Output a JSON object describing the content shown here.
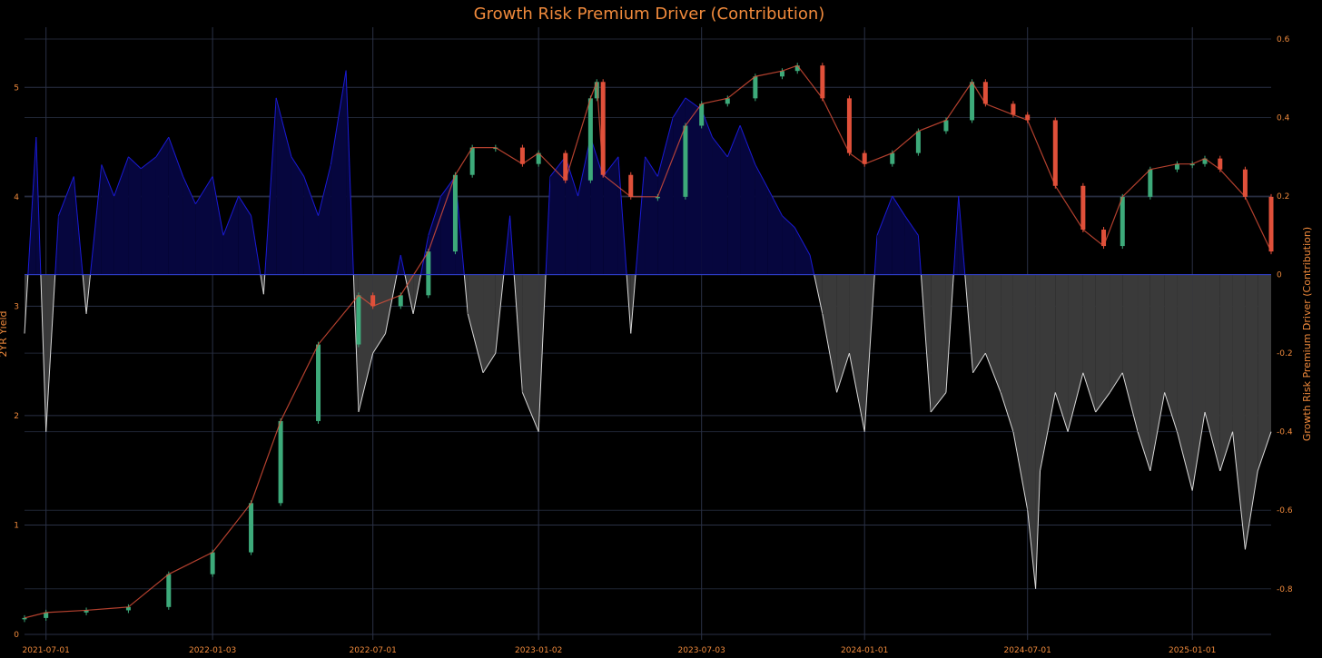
{
  "chart_data": {
    "type": "line",
    "title": "Growth Risk Premium Driver (Contribution)",
    "ylabel_left": "2YR Yield",
    "ylabel_right": "Growth Risk Premium Driver (Contribution)",
    "x_ticks": [
      "2021-07-01",
      "2022-01-03",
      "2022-07-01",
      "2023-01-02",
      "2023-07-03",
      "2024-01-01",
      "2024-07-01",
      "2025-01-01"
    ],
    "y_left_ticks": [
      "0",
      "1",
      "2",
      "3",
      "4",
      "5"
    ],
    "y_right_ticks": [
      "0.6",
      "0.4",
      "0.2",
      "0",
      "-0.2",
      "-0.4",
      "-0.6",
      "-0.8"
    ],
    "xlim": [
      "2021-06-07",
      "2025-03-30"
    ],
    "ylim_left": [
      -0.05,
      5.55
    ],
    "ylim_right": [
      -0.93,
      0.63
    ],
    "grid": true,
    "colors": {
      "background": "#000000",
      "title": "#f08a3c",
      "ticks": "#f08a3c",
      "grid": "#2a3146",
      "candle_up": "#3daa7a",
      "candle_down": "#e0503a",
      "positive_contribution": "#1a1ad6",
      "positive_fill": "#06063e",
      "negative_contribution": "#d8d8d8",
      "negative_fill": "#3a3a3a",
      "zero_line": "#3344dd"
    },
    "series": [
      {
        "name": "2YR Yield",
        "axis": "left",
        "style": "candlestick",
        "x": [
          "2021-06-07",
          "2021-07-01",
          "2021-08-15",
          "2021-10-01",
          "2021-11-15",
          "2022-01-03",
          "2022-02-15",
          "2022-03-20",
          "2022-05-01",
          "2022-06-15",
          "2022-07-01",
          "2022-08-01",
          "2022-09-01",
          "2022-10-01",
          "2022-10-20",
          "2022-11-15",
          "2022-12-15",
          "2023-01-02",
          "2023-02-01",
          "2023-03-01",
          "2023-03-08",
          "2023-03-15",
          "2023-04-15",
          "2023-05-15",
          "2023-06-15",
          "2023-07-03",
          "2023-08-01",
          "2023-09-01",
          "2023-10-01",
          "2023-10-18",
          "2023-11-15",
          "2023-12-15",
          "2024-01-01",
          "2024-02-01",
          "2024-03-01",
          "2024-04-01",
          "2024-04-30",
          "2024-05-15",
          "2024-06-15",
          "2024-07-01",
          "2024-08-01",
          "2024-09-01",
          "2024-09-24",
          "2024-10-15",
          "2024-11-15",
          "2024-12-15",
          "2025-01-01",
          "2025-01-15",
          "2025-02-01",
          "2025-03-01",
          "2025-03-30"
        ],
        "y": [
          0.15,
          0.2,
          0.22,
          0.25,
          0.55,
          0.75,
          1.2,
          1.95,
          2.65,
          3.1,
          3.0,
          3.1,
          3.5,
          4.2,
          4.45,
          4.45,
          4.3,
          4.4,
          4.15,
          4.9,
          5.05,
          4.2,
          4.0,
          4.0,
          4.65,
          4.85,
          4.9,
          5.1,
          5.15,
          5.2,
          4.9,
          4.4,
          4.3,
          4.4,
          4.6,
          4.7,
          5.05,
          4.85,
          4.75,
          4.7,
          4.1,
          3.7,
          3.55,
          4.0,
          4.25,
          4.3,
          4.3,
          4.35,
          4.25,
          4.0,
          3.5
        ]
      },
      {
        "name": "Growth Risk Premium Driver (Contribution)",
        "axis": "right",
        "style": "area",
        "x": [
          "2021-06-07",
          "2021-06-20",
          "2021-07-01",
          "2021-07-15",
          "2021-08-01",
          "2021-08-15",
          "2021-09-01",
          "2021-09-15",
          "2021-10-01",
          "2021-10-15",
          "2021-11-01",
          "2021-11-15",
          "2021-12-01",
          "2021-12-15",
          "2022-01-03",
          "2022-01-15",
          "2022-02-01",
          "2022-02-15",
          "2022-03-01",
          "2022-03-15",
          "2022-04-01",
          "2022-04-15",
          "2022-05-01",
          "2022-05-15",
          "2022-06-01",
          "2022-06-15",
          "2022-07-01",
          "2022-07-15",
          "2022-08-01",
          "2022-08-15",
          "2022-09-01",
          "2022-09-15",
          "2022-10-01",
          "2022-10-15",
          "2022-11-01",
          "2022-11-15",
          "2022-12-01",
          "2022-12-15",
          "2023-01-02",
          "2023-01-15",
          "2023-02-01",
          "2023-02-15",
          "2023-03-01",
          "2023-03-15",
          "2023-04-01",
          "2023-04-15",
          "2023-05-01",
          "2023-05-15",
          "2023-06-01",
          "2023-06-15",
          "2023-07-03",
          "2023-07-15",
          "2023-08-01",
          "2023-08-15",
          "2023-09-01",
          "2023-09-15",
          "2023-10-01",
          "2023-10-15",
          "2023-11-01",
          "2023-11-15",
          "2023-12-01",
          "2023-12-15",
          "2024-01-01",
          "2024-01-15",
          "2024-02-01",
          "2024-02-15",
          "2024-03-01",
          "2024-03-15",
          "2024-04-01",
          "2024-04-15",
          "2024-05-01",
          "2024-05-15",
          "2024-06-01",
          "2024-06-15",
          "2024-07-01",
          "2024-07-10",
          "2024-07-15",
          "2024-08-01",
          "2024-08-15",
          "2024-09-01",
          "2024-09-15",
          "2024-10-01",
          "2024-10-15",
          "2024-11-01",
          "2024-11-15",
          "2024-12-01",
          "2024-12-15",
          "2025-01-01",
          "2025-01-15",
          "2025-02-01",
          "2025-02-15",
          "2025-03-01",
          "2025-03-15",
          "2025-03-30"
        ],
        "y": [
          -0.15,
          0.35,
          -0.4,
          0.15,
          0.25,
          -0.1,
          0.28,
          0.2,
          0.3,
          0.27,
          0.3,
          0.35,
          0.25,
          0.18,
          0.25,
          0.1,
          0.2,
          0.15,
          -0.05,
          0.45,
          0.3,
          0.25,
          0.15,
          0.28,
          0.52,
          -0.35,
          -0.2,
          -0.15,
          0.05,
          -0.1,
          0.1,
          0.2,
          0.25,
          -0.1,
          -0.25,
          -0.2,
          0.15,
          -0.3,
          -0.4,
          0.25,
          0.3,
          0.2,
          0.35,
          0.25,
          0.3,
          -0.15,
          0.3,
          0.25,
          0.4,
          0.45,
          0.42,
          0.35,
          0.3,
          0.38,
          0.28,
          0.22,
          0.15,
          0.12,
          0.05,
          -0.1,
          -0.3,
          -0.2,
          -0.4,
          0.1,
          0.2,
          0.15,
          0.1,
          -0.35,
          -0.3,
          0.2,
          -0.25,
          -0.2,
          -0.3,
          -0.4,
          -0.6,
          -0.8,
          -0.5,
          -0.3,
          -0.4,
          -0.25,
          -0.35,
          -0.3,
          -0.25,
          -0.4,
          -0.5,
          -0.3,
          -0.4,
          -0.55,
          -0.35,
          -0.5,
          -0.4,
          -0.7,
          -0.5,
          -0.4
        ]
      }
    ]
  }
}
